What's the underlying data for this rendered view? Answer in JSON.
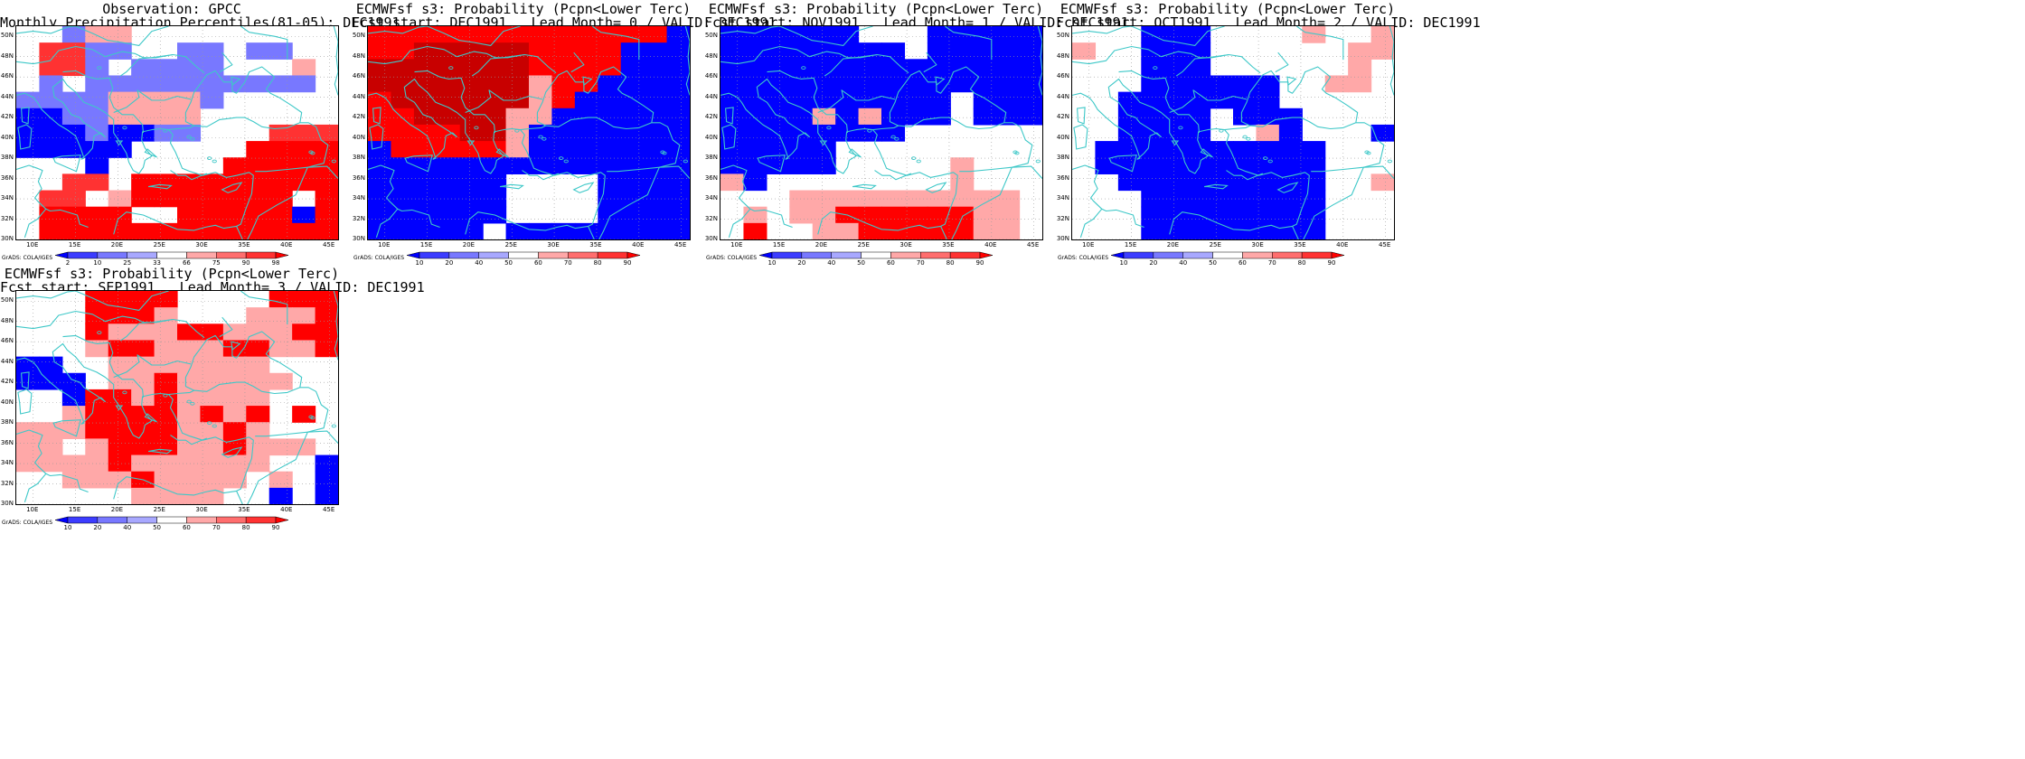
{
  "colors": {
    "blue_dark": "#0000ff",
    "blue_mid": "#3c3cff",
    "blue_light": "#7878ff",
    "blue_pale": "#a8a8ff",
    "white": "#ffffff",
    "red_pale": "#ffa8a8",
    "red_light": "#ff6e6e",
    "red_mid": "#ff3232",
    "red_dark": "#ff0000",
    "red_deep": "#c80000",
    "red_deepest": "#a00000",
    "coast": "#3ec8c8",
    "grid": "#999999"
  },
  "map_extent": {
    "lon": [
      8,
      46
    ],
    "lat": [
      30,
      51
    ]
  },
  "lat_labels": [
    "30N",
    "32N",
    "34N",
    "36N",
    "38N",
    "40N",
    "42N",
    "44N",
    "46N",
    "48N",
    "50N"
  ],
  "lon_labels": [
    "10E",
    "15E",
    "20E",
    "25E",
    "30E",
    "35E",
    "40E",
    "45E"
  ],
  "credit": "GrADS: COLA/IGES",
  "panels": [
    {
      "title1": "Observation: GPCC",
      "title2": "Monthly Precipitation Percentiles(81-05): DEC1991",
      "cb_labels": [
        "2",
        "10",
        "25",
        "33",
        "66",
        "75",
        "90",
        "98"
      ],
      "grid": [
        "WWSPPWWWWWWWWW",
        "WrrSSWWSSWSSWW",
        "WrrSWSSSSWWWPW",
        "WSWSSSSSSSSSSW",
        "SSSSPPPPSWWWWW",
        "BBSSPPPPWWWWWW",
        "BBBSBBSSWWWrrr",
        "BBBBBWWWWWRRRR",
        "WWWBWWWWWRRRRR",
        "WWrrWRRRRRRRRR",
        "WrrWPRRRRRRRWR",
        "WRRRRWWRRRRRBR",
        "WRRRRRRRRRRRRR"
      ]
    },
    {
      "title1": "ECMWFsf s3: Probability (Pcpn<Lower Terc)",
      "title2": "Fcst start: DEC1991   Lead Month= 0 / VALID: DEC1991",
      "cb_labels": [
        "10",
        "20",
        "40",
        "50",
        "60",
        "70",
        "80",
        "90"
      ],
      "grid": [
        "RRRRRRRRRRRRRB",
        "RRDDDDDRRRRBBB",
        "DDDDDDDRRRRBBB",
        "DDDDDDDPRRBBBB",
        "RDDDDDDPRBBBBB",
        "RRDDDDPPBBBBBB",
        "RRRRDDPBBBBBBB",
        "BRRRRRPBBBBBBB",
        "BBBBBBBBBBBBBB",
        "BBBBBBWWWWBBBB",
        "BBBBBBWWWWBBBB",
        "BBBBBBWWWWBBBB",
        "BBBBBWBBBBBBBB"
      ]
    },
    {
      "title1": "ECMWFsf s3: Probability (Pcpn<Lower Terc)",
      "title2": "Fcst start: NOV1991   Lead Month= 1 / VALID: DEC1991",
      "cb_labels": [
        "10",
        "20",
        "40",
        "50",
        "60",
        "70",
        "80",
        "90"
      ],
      "grid": [
        "BBBBBBWWWBBBBB",
        "BBBBBBBBWBBBBB",
        "BBBBBBBBBBBBBB",
        "BBBBBBBBBBBBBB",
        "BBBBBBBBBBWBBB",
        "BBBBPBPBBBWBBB",
        "BBBBBBBBWWWWWW",
        "BBBBBWWWWWWWWW",
        "BBBBBWWWWWPWWW",
        "PBWWWWWWWWPWWW",
        "WWWPPPPPPPPPPW",
        "WPWPPRRRRRRPPW",
        "WRWWPPRRRRRPPW"
      ]
    },
    {
      "title1": "ECMWFsf s3: Probability (Pcpn<Lower Terc)",
      "title2": "Fcst start: OCT1991   Lead Month= 2 / VALID: DEC1991",
      "cb_labels": [
        "10",
        "20",
        "40",
        "50",
        "60",
        "70",
        "80",
        "90"
      ],
      "grid": [
        "WWWBBBWWWWPWWP",
        "PWWBBBWWWWWWPP",
        "WWWBBBWWWWWWPW",
        "WWWBBBBBBWWPPW",
        "WWBBBBBBBWWWWW",
        "WWBBBBWBBBWWWW",
        "WWBBBBWWPBWWWB",
        "WBBBBBBBBBBWWW",
        "WBBBBBBBBBBWWW",
        "WWBBBBBBBBBWWP",
        "WWWBBBBBBBBWWW",
        "WWWBBBBBBBBWWW",
        "WWWBBBBBBBBWWW"
      ]
    },
    {
      "title1": "ECMWFsf s3: Probability (Pcpn<Lower Terc)",
      "title2": "Fcst start: SEP1991   Lead Month= 3 / VALID: DEC1991",
      "cb_labels": [
        "10",
        "20",
        "40",
        "50",
        "60",
        "70",
        "80",
        "90"
      ],
      "grid": [
        "WWWRRRRWWWWRRR",
        "WWWRRRPWWWPPPR",
        "WWWRPPPRRPPPRR",
        "WWWPRRPPPRRPPR",
        "BBWWPPPPPPPWWW",
        "BBBWPPRPPPPPWW",
        "WWBRRPRPPPPWWW",
        "WWPRRRRPRPRWRW",
        "PPPRRRRPPRPWWW",
        "PPWPRRRPPRPPPW",
        "PPPPRPPPPPPWWB",
        "WWPPPRPPPPWPWB",
        "WWWWWPPPPWWBWB"
      ]
    }
  ]
}
